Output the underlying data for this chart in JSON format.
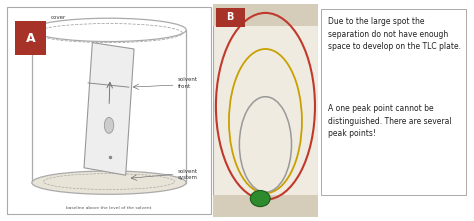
{
  "fig_width": 4.74,
  "fig_height": 2.21,
  "dpi": 100,
  "bg_color": "#ffffff",
  "panel_A": {
    "label": "A",
    "label_color": "#ffffff",
    "label_bg": "#a63228",
    "cover_text": "cover",
    "solvent_front_text": "solvent\nfront",
    "solvent_system_text": "solvent\nsystem",
    "baseline_text": "baseline above the level of the solvent",
    "cyl_color": "#aaaaaa",
    "cyl_fill": "#ffffff",
    "bot_fill": "#e8e4d8",
    "plate_fill": "#eeeeee",
    "plate_edge": "#999999",
    "spot_fill": "#cccccc"
  },
  "panel_B": {
    "label": "B",
    "label_color": "#ffffff",
    "label_bg": "#a63228",
    "bg_color": "#f0ebe0",
    "top_bot_strip": "#d5ccba",
    "border_color": "#aaaaaa",
    "ellipse_red": "#c0392b",
    "ellipse_yellow": "#c8a000",
    "ellipse_gray": "#999999",
    "dot_color": "#2d8a2d",
    "dot_edge": "#1a5c1a"
  },
  "annotation": {
    "text1": "Due to the large spot the\nseparation do not have enough\nspace to develop on the TLC plate.",
    "text2": "A one peak point cannot be\ndistinguished. There are several\npeak points!",
    "box_edge": "#aaaaaa",
    "box_fill": "#ffffff",
    "arrow1_color": "#c0392b",
    "arrow2_color": "#333333",
    "line_color": "#333333",
    "fontsize": 5.5
  }
}
